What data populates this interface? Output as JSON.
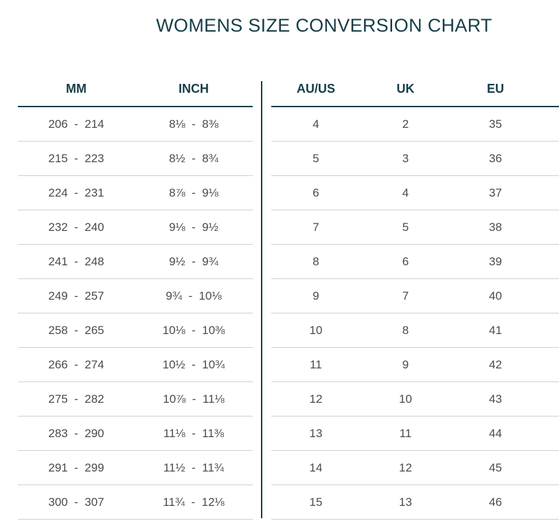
{
  "title": "WOMENS SIZE CONVERSION CHART",
  "headers": {
    "mm": "MM",
    "inch": "INCH",
    "au_us": "AU/US",
    "uk": "UK",
    "eu": "EU"
  },
  "rows": [
    {
      "mm": "206  -  214",
      "inch": "8⅛  -  8⅜",
      "au_us": "4",
      "uk": "2",
      "eu": "35"
    },
    {
      "mm": "215  -  223",
      "inch": "8½  -  8¾",
      "au_us": "5",
      "uk": "3",
      "eu": "36"
    },
    {
      "mm": "224  -  231",
      "inch": "8⅞  -  9⅛",
      "au_us": "6",
      "uk": "4",
      "eu": "37"
    },
    {
      "mm": "232  -  240",
      "inch": "9⅛  -  9½",
      "au_us": "7",
      "uk": "5",
      "eu": "38"
    },
    {
      "mm": "241  -  248",
      "inch": "9½  -  9¾",
      "au_us": "8",
      "uk": "6",
      "eu": "39"
    },
    {
      "mm": "249  -  257",
      "inch": "9¾  -  10⅛",
      "au_us": "9",
      "uk": "7",
      "eu": "40"
    },
    {
      "mm": "258  -  265",
      "inch": "10⅛  -  10⅜",
      "au_us": "10",
      "uk": "8",
      "eu": "41"
    },
    {
      "mm": "266  -  274",
      "inch": "10½  -  10¾",
      "au_us": "11",
      "uk": "9",
      "eu": "42"
    },
    {
      "mm": "275  -  282",
      "inch": "10⅞  -  11⅛",
      "au_us": "12",
      "uk": "10",
      "eu": "43"
    },
    {
      "mm": "283  -  290",
      "inch": "11⅛  -  11⅜",
      "au_us": "13",
      "uk": "11",
      "eu": "44"
    },
    {
      "mm": "291  -  299",
      "inch": "11½  -  11¾",
      "au_us": "14",
      "uk": "12",
      "eu": "45"
    },
    {
      "mm": "300  -  307",
      "inch": "11¾  -  12⅛",
      "au_us": "15",
      "uk": "13",
      "eu": "46"
    }
  ],
  "colors": {
    "heading": "#173d47",
    "text": "#4a4a4a",
    "row_rule": "#cfcfcf"
  }
}
